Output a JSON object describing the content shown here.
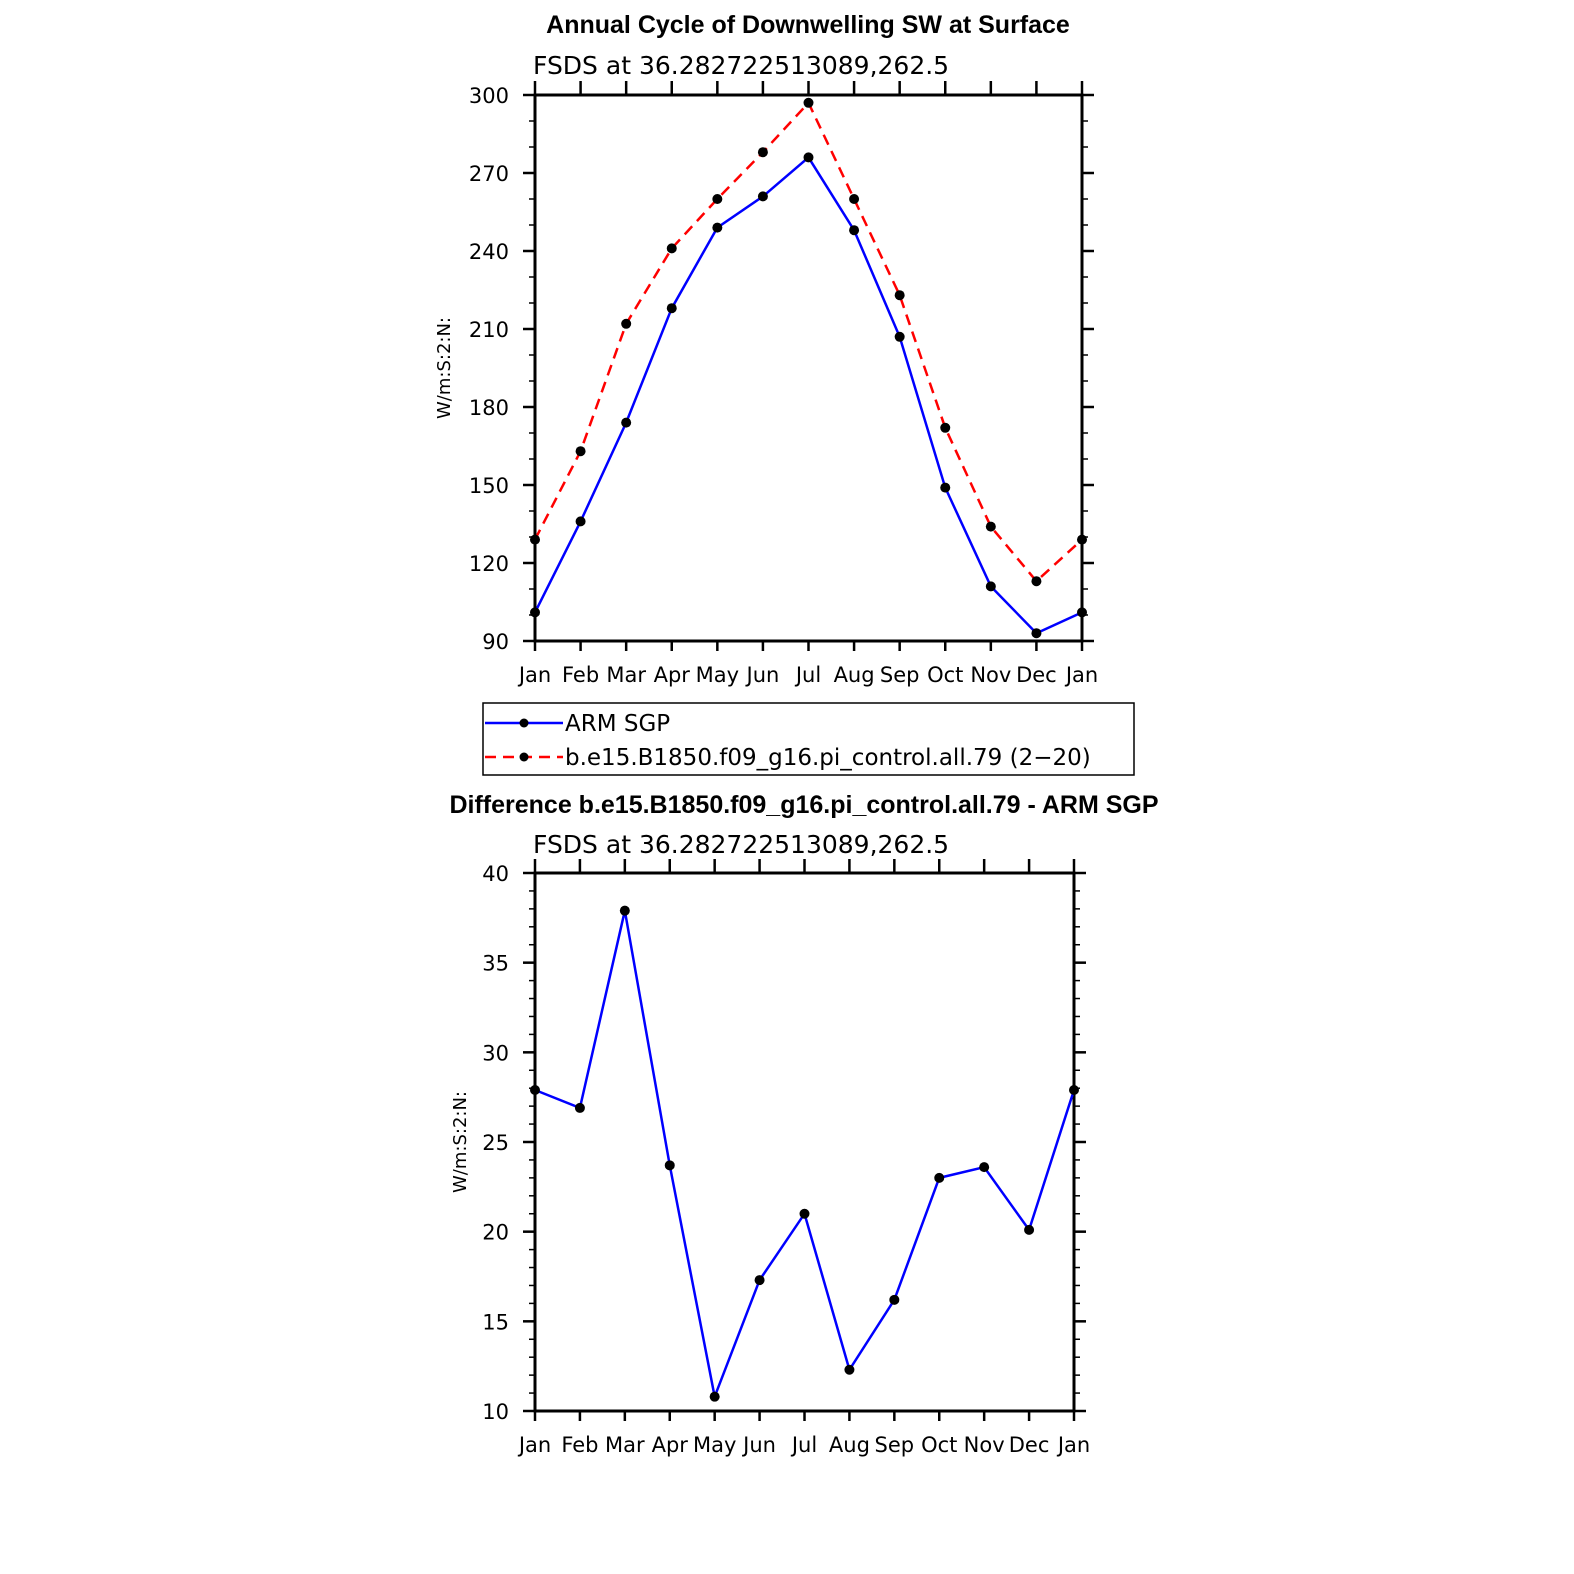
{
  "chart_data": [
    {
      "type": "line",
      "title": "Annual Cycle of Downwelling SW at Surface",
      "subtitle": "FSDS at 36.282722513089,262.5",
      "ylabel": "W/m:S:2:N:",
      "xlabel": "",
      "categories": [
        "Jan",
        "Feb",
        "Mar",
        "Apr",
        "May",
        "Jun",
        "Jul",
        "Aug",
        "Sep",
        "Oct",
        "Nov",
        "Dec",
        "Jan"
      ],
      "ylim": [
        90,
        300
      ],
      "yticks": [
        90,
        120,
        150,
        180,
        210,
        240,
        270,
        300
      ],
      "grid": false,
      "legend_position": "below",
      "series": [
        {
          "name": "ARM SGP",
          "color": "#0000ff",
          "dash": "solid",
          "values": [
            101,
            136,
            174,
            218,
            249,
            261,
            276,
            248,
            207,
            149,
            111,
            93,
            101
          ]
        },
        {
          "name": "b.e15.B1850.f09_g16.pi_control.all.79 (2−20)",
          "color": "#ff0000",
          "dash": "dashed",
          "values": [
            129,
            163,
            212,
            241,
            260,
            278,
            297,
            260,
            223,
            172,
            134,
            113,
            129
          ]
        }
      ]
    },
    {
      "type": "line",
      "title": "Difference b.e15.B1850.f09_g16.pi_control.all.79 - ARM SGP",
      "subtitle": "FSDS at 36.282722513089,262.5",
      "ylabel": "W/m:S:2:N:",
      "xlabel": "",
      "categories": [
        "Jan",
        "Feb",
        "Mar",
        "Apr",
        "May",
        "Jun",
        "Jul",
        "Aug",
        "Sep",
        "Oct",
        "Nov",
        "Dec",
        "Jan"
      ],
      "ylim": [
        10,
        40
      ],
      "yticks": [
        10,
        15,
        20,
        25,
        30,
        35,
        40
      ],
      "grid": false,
      "series": [
        {
          "color": "#0000ff",
          "dash": "solid",
          "values": [
            27.9,
            26.9,
            37.9,
            23.7,
            10.8,
            17.3,
            21.0,
            12.3,
            16.2,
            23.0,
            23.6,
            20.1,
            27.9
          ]
        }
      ]
    }
  ],
  "colors": {
    "marker": "#000000",
    "axis": "#000000"
  }
}
